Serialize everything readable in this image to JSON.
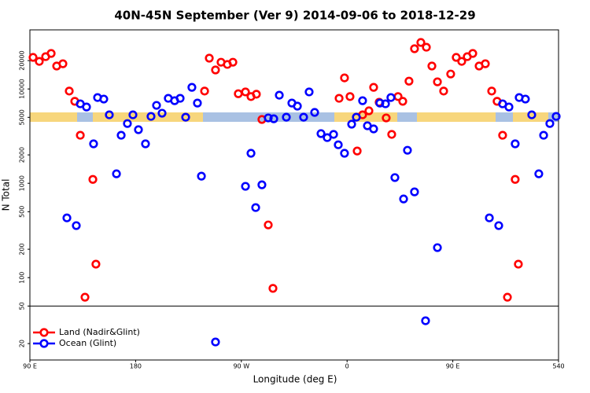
{
  "chart_data": {
    "type": "scatter",
    "title": "40N-45N September (Ver 9)   2014-09-06 to 2018-12-29",
    "xlabel": "Longitude (deg E)",
    "ylabel": "N Total",
    "xlim": [
      90,
      540
    ],
    "xticks": [
      {
        "value": 90,
        "label": "90 E"
      },
      180,
      {
        "value": 270,
        "label": "90 W"
      },
      {
        "value": 360,
        "label": "0"
      },
      {
        "value": 450,
        "label": "90 E"
      },
      540
    ],
    "ylim": [
      13.4,
      42300
    ],
    "log_y": true,
    "yticks": [
      20,
      50,
      100,
      200,
      500,
      1000,
      2000,
      5000,
      10000,
      20000
    ],
    "legend": "bottom-left",
    "series": [
      {
        "name": "Land (Nadir&Glint)",
        "color": "#ff0000",
        "x": [
          92.7,
          98.0,
          103.4,
          108.1,
          112.8,
          118.1,
          123.5,
          128.2,
          132.9,
          136.9,
          143.6,
          146.2,
          238.7,
          242.7,
          248.0,
          252.7,
          258.1,
          262.8,
          267.4,
          273.5,
          278.2,
          282.8,
          287.5,
          292.9,
          296.9,
          353.2,
          357.8,
          362.5,
          368.6,
          373.2,
          378.6,
          382.6,
          387.3,
          393.3,
          398.0,
          403.4,
          407.4,
          412.7,
          417.4,
          422.8,
          427.5,
          432.2,
          436.9,
          442.2,
          448.2,
          452.9,
          457.6,
          462.3,
          467.0,
          472.4,
          477.7,
          483.1,
          487.7,
          492.4,
          496.5,
          503.1,
          505.8
        ],
        "values": [
          21600,
          19600,
          22000,
          23800,
          17500,
          18500,
          9500,
          7400,
          3230,
          62,
          1100,
          139,
          9500,
          21200,
          15900,
          19200,
          18200,
          19200,
          8900,
          9300,
          8300,
          8800,
          4750,
          362,
          77,
          7960,
          13100,
          8300,
          2200,
          5320,
          5860,
          10400,
          7230,
          4930,
          3300,
          8300,
          7400,
          12100,
          26700,
          31100,
          27700,
          17500,
          11900,
          9500,
          14400,
          21600,
          19600,
          22000,
          23800,
          17500,
          18500,
          9500,
          7400,
          3230,
          62,
          1100,
          139
        ]
      },
      {
        "name": "Ocean (Glint)",
        "color": "#0000ff",
        "x": [
          121.5,
          129.5,
          132.9,
          138.2,
          144.2,
          147.6,
          152.9,
          157.6,
          163.7,
          167.7,
          173.0,
          177.7,
          182.4,
          188.4,
          193.1,
          197.8,
          202.5,
          207.8,
          213.2,
          217.9,
          222.6,
          227.9,
          232.6,
          236.0,
          248.0,
          273.5,
          278.2,
          282.2,
          287.5,
          292.9,
          297.6,
          302.3,
          308.3,
          313.0,
          317.7,
          323.0,
          327.7,
          332.4,
          337.8,
          343.1,
          348.5,
          352.5,
          357.8,
          363.9,
          367.9,
          373.2,
          377.3,
          382.6,
          387.9,
          392.7,
          397.3,
          400.7,
          408.1,
          411.4,
          417.4,
          426.8,
          436.9,
          481.1,
          489.1,
          492.4,
          497.8,
          503.1,
          506.5,
          511.8,
          517.2,
          523.2,
          527.3,
          532.6,
          538.0
        ],
        "values": [
          430,
          356,
          6960,
          6440,
          2620,
          8110,
          7810,
          5320,
          1260,
          3230,
          4300,
          5320,
          3700,
          2620,
          5120,
          6700,
          5530,
          7960,
          7510,
          7960,
          5020,
          10400,
          7090,
          1190,
          20.8,
          929,
          2080,
          553,
          964,
          4930,
          4830,
          8590,
          5020,
          7090,
          6580,
          5020,
          9300,
          5640,
          3360,
          3050,
          3300,
          2560,
          2080,
          4230,
          5020,
          7510,
          4070,
          3770,
          7090,
          6960,
          8110,
          1150,
          682,
          2240,
          811,
          34.9,
          208,
          430,
          356,
          6960,
          6440,
          2620,
          8110,
          7810,
          5320,
          1260,
          3230,
          4300,
          5120
        ]
      }
    ]
  }
}
